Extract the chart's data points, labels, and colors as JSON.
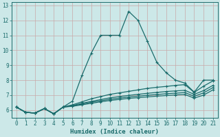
{
  "title": "",
  "xlabel": "Humidex (Indice chaleur)",
  "ylabel": "",
  "xlim": [
    -0.5,
    21.5
  ],
  "ylim": [
    5.5,
    13.2
  ],
  "yticks": [
    6,
    7,
    8,
    9,
    10,
    11,
    12,
    13
  ],
  "xticks": [
    0,
    1,
    2,
    3,
    4,
    5,
    6,
    7,
    8,
    9,
    10,
    11,
    12,
    13,
    14,
    15,
    16,
    17,
    18,
    19,
    20,
    21
  ],
  "bg_color": "#cce8e8",
  "grid_color": "#c8a8a8",
  "line_color": "#1a6b6b",
  "lines": [
    {
      "x": [
        0,
        1,
        2,
        3,
        4,
        5,
        6,
        7,
        8,
        9,
        10,
        11,
        12,
        13,
        14,
        15,
        16,
        17,
        18,
        19,
        20,
        21
      ],
      "y": [
        6.2,
        5.85,
        5.8,
        6.1,
        5.75,
        6.2,
        6.6,
        8.3,
        9.8,
        11.0,
        11.0,
        11.0,
        12.6,
        12.0,
        10.6,
        9.2,
        8.5,
        8.0,
        7.8,
        7.2,
        8.0,
        8.0
      ]
    },
    {
      "x": [
        0,
        1,
        2,
        3,
        4,
        5,
        6,
        7,
        8,
        9,
        10,
        11,
        12,
        13,
        14,
        15,
        16,
        17,
        18,
        19,
        20,
        21
      ],
      "y": [
        6.2,
        5.85,
        5.8,
        6.1,
        5.75,
        6.2,
        6.35,
        6.55,
        6.75,
        6.9,
        7.05,
        7.15,
        7.25,
        7.35,
        7.45,
        7.52,
        7.58,
        7.65,
        7.7,
        7.18,
        7.6,
        7.95
      ]
    },
    {
      "x": [
        0,
        1,
        2,
        3,
        4,
        5,
        6,
        7,
        8,
        9,
        10,
        11,
        12,
        13,
        14,
        15,
        16,
        17,
        18,
        19,
        20,
        21
      ],
      "y": [
        6.2,
        5.85,
        5.8,
        6.1,
        5.75,
        6.2,
        6.3,
        6.45,
        6.58,
        6.7,
        6.82,
        6.9,
        6.98,
        7.05,
        7.12,
        7.18,
        7.24,
        7.28,
        7.32,
        7.05,
        7.3,
        7.65
      ]
    },
    {
      "x": [
        0,
        1,
        2,
        3,
        4,
        5,
        6,
        7,
        8,
        9,
        10,
        11,
        12,
        13,
        14,
        15,
        16,
        17,
        18,
        19,
        20,
        21
      ],
      "y": [
        6.2,
        5.85,
        5.8,
        6.1,
        5.75,
        6.2,
        6.28,
        6.4,
        6.52,
        6.62,
        6.72,
        6.8,
        6.87,
        6.93,
        6.99,
        7.04,
        7.09,
        7.13,
        7.17,
        6.92,
        7.15,
        7.5
      ]
    },
    {
      "x": [
        0,
        1,
        2,
        3,
        4,
        5,
        6,
        7,
        8,
        9,
        10,
        11,
        12,
        13,
        14,
        15,
        16,
        17,
        18,
        19,
        20,
        21
      ],
      "y": [
        6.2,
        5.85,
        5.8,
        6.1,
        5.75,
        6.2,
        6.25,
        6.35,
        6.45,
        6.55,
        6.64,
        6.71,
        6.78,
        6.83,
        6.88,
        6.93,
        6.97,
        7.01,
        7.04,
        6.8,
        7.0,
        7.35
      ]
    }
  ],
  "font_size_ticks": 5.5,
  "font_size_xlabel": 6.5
}
